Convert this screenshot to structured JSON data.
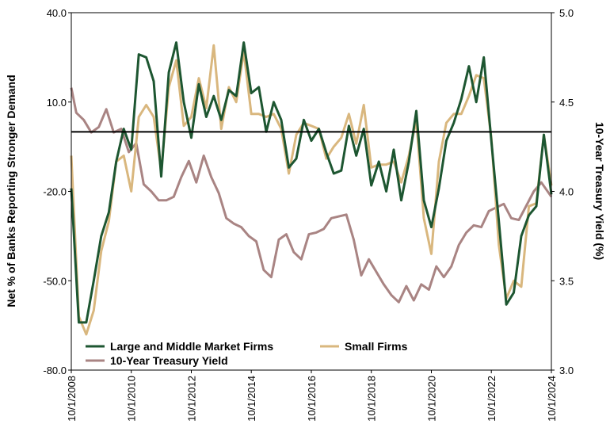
{
  "chart_data": {
    "type": "line",
    "ylabel": "Net % of Banks Reporting Stronger Demand",
    "y2label": "10-Year Treasury Yield (%)",
    "ylim": [
      -80,
      40
    ],
    "y2lim": [
      3.0,
      5.0
    ],
    "yticks": [
      "40.0",
      "10.0",
      "-20.0",
      "-50.0",
      "-80.0"
    ],
    "y2ticks": [
      "5.0",
      "4.5",
      "4.0",
      "3.5",
      "3.0"
    ],
    "xlim": [
      "2008-10-01",
      "2024-10-01"
    ],
    "xticks": [
      "10/1/2008",
      "10/1/2010",
      "10/1/2012",
      "10/1/2014",
      "10/1/2016",
      "10/1/2018",
      "10/1/2020",
      "10/1/2022",
      "10/1/2024"
    ],
    "reference_line": {
      "axis": "left",
      "value": 0
    },
    "legend": {
      "placement": "bottom-left",
      "items": [
        "Large and Middle Market Firms",
        "Small Firms",
        "10-Year Treasury Yield"
      ]
    },
    "colors": {
      "large": "#1d5631",
      "small": "#d9b77e",
      "treasury": "#a98483",
      "refline": "#000000"
    },
    "series": [
      {
        "name": "Large and Middle Market Firms",
        "axis": "left",
        "points": [
          [
            "2008-10-01",
            -19
          ],
          [
            "2009-01-01",
            -64
          ],
          [
            "2009-04-01",
            -64
          ],
          [
            "2009-07-01",
            -50
          ],
          [
            "2009-10-01",
            -35
          ],
          [
            "2010-01-01",
            -27
          ],
          [
            "2010-04-01",
            -10
          ],
          [
            "2010-07-01",
            1
          ],
          [
            "2010-10-01",
            -6
          ],
          [
            "2011-01-01",
            26
          ],
          [
            "2011-04-01",
            25
          ],
          [
            "2011-07-01",
            17
          ],
          [
            "2011-10-01",
            -15
          ],
          [
            "2012-01-01",
            20
          ],
          [
            "2012-04-01",
            30
          ],
          [
            "2012-07-01",
            10
          ],
          [
            "2012-10-01",
            -2
          ],
          [
            "2013-01-01",
            16
          ],
          [
            "2013-04-01",
            5
          ],
          [
            "2013-07-01",
            12
          ],
          [
            "2013-10-01",
            4
          ],
          [
            "2014-01-01",
            14
          ],
          [
            "2014-04-01",
            12
          ],
          [
            "2014-07-01",
            30
          ],
          [
            "2014-10-01",
            13
          ],
          [
            "2015-01-01",
            15
          ],
          [
            "2015-04-01",
            0
          ],
          [
            "2015-07-01",
            10
          ],
          [
            "2015-10-01",
            4
          ],
          [
            "2016-01-01",
            -12
          ],
          [
            "2016-04-01",
            -9
          ],
          [
            "2016-07-01",
            4
          ],
          [
            "2016-10-01",
            -3
          ],
          [
            "2017-01-01",
            1
          ],
          [
            "2017-04-01",
            -7
          ],
          [
            "2017-07-01",
            -14
          ],
          [
            "2017-10-01",
            -13
          ],
          [
            "2018-01-01",
            2
          ],
          [
            "2018-04-01",
            -8
          ],
          [
            "2018-07-01",
            1
          ],
          [
            "2018-10-01",
            -18
          ],
          [
            "2019-01-01",
            -10
          ],
          [
            "2019-04-01",
            -20
          ],
          [
            "2019-07-01",
            -6
          ],
          [
            "2019-10-01",
            -23
          ],
          [
            "2020-01-01",
            -10
          ],
          [
            "2020-04-01",
            7
          ],
          [
            "2020-07-01",
            -23
          ],
          [
            "2020-10-01",
            -32
          ],
          [
            "2021-01-01",
            -19
          ],
          [
            "2021-04-01",
            -3
          ],
          [
            "2021-07-01",
            3
          ],
          [
            "2021-10-01",
            11
          ],
          [
            "2022-01-01",
            22
          ],
          [
            "2022-04-01",
            10
          ],
          [
            "2022-07-01",
            25
          ],
          [
            "2022-10-01",
            -3
          ],
          [
            "2023-01-01",
            -30
          ],
          [
            "2023-04-01",
            -58
          ],
          [
            "2023-07-01",
            -54
          ],
          [
            "2023-10-01",
            -35
          ],
          [
            "2024-01-01",
            -28
          ],
          [
            "2024-04-01",
            -25
          ],
          [
            "2024-07-01",
            -1
          ],
          [
            "2024-10-01",
            -21
          ]
        ]
      },
      {
        "name": "Small Firms",
        "axis": "left",
        "points": [
          [
            "2008-10-01",
            -8
          ],
          [
            "2009-01-01",
            -62
          ],
          [
            "2009-04-01",
            -68
          ],
          [
            "2009-07-01",
            -60
          ],
          [
            "2009-10-01",
            -40
          ],
          [
            "2010-01-01",
            -30
          ],
          [
            "2010-04-01",
            -10
          ],
          [
            "2010-07-01",
            -8
          ],
          [
            "2010-10-01",
            -20
          ],
          [
            "2011-01-01",
            5
          ],
          [
            "2011-04-01",
            9
          ],
          [
            "2011-07-01",
            5
          ],
          [
            "2011-10-01",
            -13
          ],
          [
            "2012-01-01",
            15
          ],
          [
            "2012-04-01",
            24
          ],
          [
            "2012-07-01",
            2
          ],
          [
            "2012-10-01",
            5
          ],
          [
            "2013-01-01",
            18
          ],
          [
            "2013-04-01",
            8
          ],
          [
            "2013-07-01",
            29
          ],
          [
            "2013-10-01",
            1
          ],
          [
            "2014-01-01",
            15
          ],
          [
            "2014-04-01",
            10
          ],
          [
            "2014-07-01",
            27
          ],
          [
            "2014-10-01",
            6
          ],
          [
            "2015-01-01",
            6
          ],
          [
            "2015-04-01",
            5
          ],
          [
            "2015-07-01",
            6
          ],
          [
            "2015-10-01",
            1
          ],
          [
            "2016-01-01",
            -14
          ],
          [
            "2016-04-01",
            -1
          ],
          [
            "2016-07-01",
            3
          ],
          [
            "2016-10-01",
            2
          ],
          [
            "2017-01-01",
            1
          ],
          [
            "2017-04-01",
            -9
          ],
          [
            "2017-07-01",
            -5
          ],
          [
            "2017-10-01",
            -2
          ],
          [
            "2018-01-01",
            6
          ],
          [
            "2018-04-01",
            -4
          ],
          [
            "2018-07-01",
            9
          ],
          [
            "2018-10-01",
            -12
          ],
          [
            "2019-01-01",
            -11
          ],
          [
            "2019-04-01",
            -11
          ],
          [
            "2019-07-01",
            -10
          ],
          [
            "2019-10-01",
            -17
          ],
          [
            "2020-01-01",
            -8
          ],
          [
            "2020-04-01",
            4
          ],
          [
            "2020-07-01",
            -29
          ],
          [
            "2020-10-01",
            -41
          ],
          [
            "2021-01-01",
            -10
          ],
          [
            "2021-04-01",
            3
          ],
          [
            "2021-07-01",
            6
          ],
          [
            "2021-10-01",
            6
          ],
          [
            "2022-01-01",
            12
          ],
          [
            "2022-04-01",
            19
          ],
          [
            "2022-07-01",
            18
          ],
          [
            "2022-10-01",
            -2
          ],
          [
            "2023-01-01",
            -38
          ],
          [
            "2023-04-01",
            -56
          ],
          [
            "2023-07-01",
            -50
          ],
          [
            "2023-10-01",
            -52
          ],
          [
            "2024-01-01",
            -25
          ],
          [
            "2024-04-01",
            -24
          ],
          [
            "2024-07-01",
            -1
          ],
          [
            "2024-10-01",
            -18
          ]
        ]
      },
      {
        "name": "10-Year Treasury Yield",
        "axis": "right",
        "points": [
          [
            "2008-10-01",
            4.58
          ],
          [
            "2008-12-01",
            4.44
          ],
          [
            "2009-03-01",
            4.4
          ],
          [
            "2009-06-01",
            4.33
          ],
          [
            "2009-09-01",
            4.36
          ],
          [
            "2009-12-01",
            4.46
          ],
          [
            "2010-03-01",
            4.33
          ],
          [
            "2010-06-01",
            4.35
          ],
          [
            "2010-09-01",
            4.22
          ],
          [
            "2010-12-01",
            4.27
          ],
          [
            "2011-03-01",
            4.04
          ],
          [
            "2011-06-01",
            4.0
          ],
          [
            "2011-09-01",
            3.95
          ],
          [
            "2011-12-01",
            3.95
          ],
          [
            "2012-03-01",
            3.97
          ],
          [
            "2012-06-01",
            4.08
          ],
          [
            "2012-09-01",
            4.17
          ],
          [
            "2012-12-01",
            4.05
          ],
          [
            "2013-03-01",
            4.2
          ],
          [
            "2013-06-01",
            4.08
          ],
          [
            "2013-09-01",
            3.99
          ],
          [
            "2013-12-01",
            3.85
          ],
          [
            "2014-03-01",
            3.82
          ],
          [
            "2014-06-01",
            3.8
          ],
          [
            "2014-09-01",
            3.75
          ],
          [
            "2014-12-01",
            3.72
          ],
          [
            "2015-03-01",
            3.56
          ],
          [
            "2015-06-01",
            3.52
          ],
          [
            "2015-09-01",
            3.73
          ],
          [
            "2015-12-01",
            3.76
          ],
          [
            "2016-03-01",
            3.66
          ],
          [
            "2016-06-01",
            3.62
          ],
          [
            "2016-09-01",
            3.76
          ],
          [
            "2016-12-01",
            3.77
          ],
          [
            "2017-03-01",
            3.79
          ],
          [
            "2017-06-01",
            3.85
          ],
          [
            "2017-09-01",
            3.86
          ],
          [
            "2017-12-01",
            3.87
          ],
          [
            "2018-03-01",
            3.73
          ],
          [
            "2018-06-01",
            3.53
          ],
          [
            "2018-09-01",
            3.62
          ],
          [
            "2018-12-01",
            3.55
          ],
          [
            "2019-03-01",
            3.48
          ],
          [
            "2019-06-01",
            3.42
          ],
          [
            "2019-09-01",
            3.38
          ],
          [
            "2019-12-01",
            3.47
          ],
          [
            "2020-03-01",
            3.39
          ],
          [
            "2020-06-01",
            3.48
          ],
          [
            "2020-09-01",
            3.45
          ],
          [
            "2020-12-01",
            3.58
          ],
          [
            "2021-03-01",
            3.52
          ],
          [
            "2021-06-01",
            3.58
          ],
          [
            "2021-09-01",
            3.7
          ],
          [
            "2021-12-01",
            3.77
          ],
          [
            "2022-03-01",
            3.81
          ],
          [
            "2022-06-01",
            3.8
          ],
          [
            "2022-09-01",
            3.89
          ],
          [
            "2022-12-01",
            3.91
          ],
          [
            "2023-03-01",
            3.93
          ],
          [
            "2023-06-01",
            3.85
          ],
          [
            "2023-09-01",
            3.84
          ],
          [
            "2023-12-01",
            3.92
          ],
          [
            "2024-03-01",
            4.0
          ],
          [
            "2024-06-01",
            4.05
          ],
          [
            "2024-10-01",
            3.97
          ]
        ]
      }
    ]
  }
}
